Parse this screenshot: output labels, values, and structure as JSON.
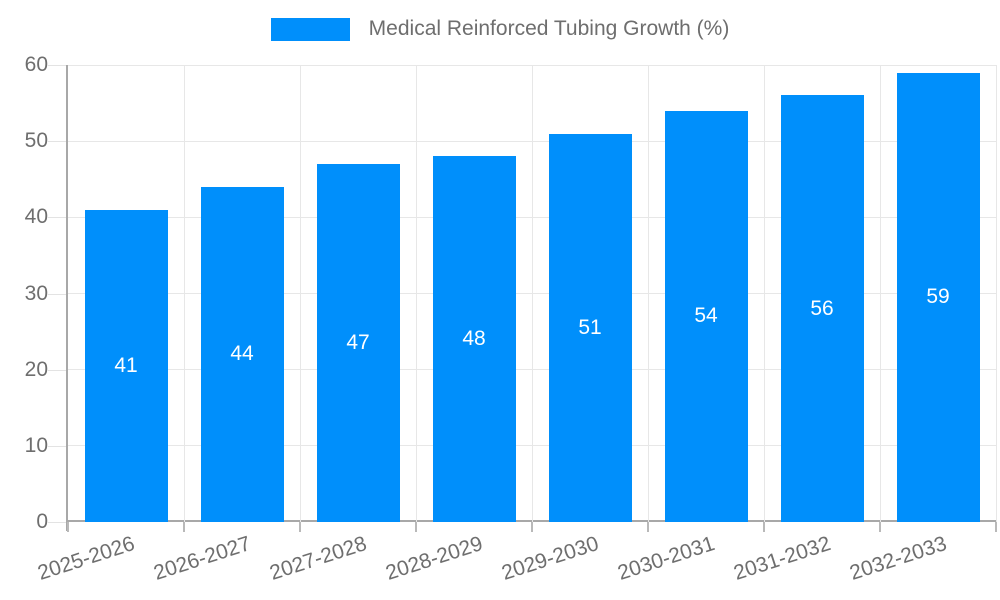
{
  "chart_data": {
    "type": "bar",
    "title": "Medical Reinforced Tubing Growth (%)",
    "categories": [
      "2025-2026",
      "2026-2027",
      "2027-2028",
      "2028-2029",
      "2029-2030",
      "2030-2031",
      "2031-2032",
      "2032-2033"
    ],
    "series": [
      {
        "name": "Medical Reinforced Tubing Growth (%)",
        "values": [
          41,
          44,
          47,
          48,
          51,
          54,
          56,
          59
        ]
      }
    ],
    "bar_labels": [
      "41",
      "44",
      "47",
      "48",
      "51",
      "54",
      "56",
      "59"
    ],
    "ylim": [
      0,
      60
    ],
    "ytick_step": 10,
    "ytick_labels": [
      "0",
      "10",
      "20",
      "30",
      "40",
      "50",
      "60"
    ],
    "grid": true,
    "legend_position": "top",
    "xlabel": "",
    "ylabel": "",
    "colors": {
      "bar": "#008FFB",
      "bar_label": "#ffffff",
      "axis_line": "#a8a8a8",
      "gridline": "#e7e7e7",
      "tick_text": "#6e6e6e",
      "background": "#ffffff"
    }
  }
}
